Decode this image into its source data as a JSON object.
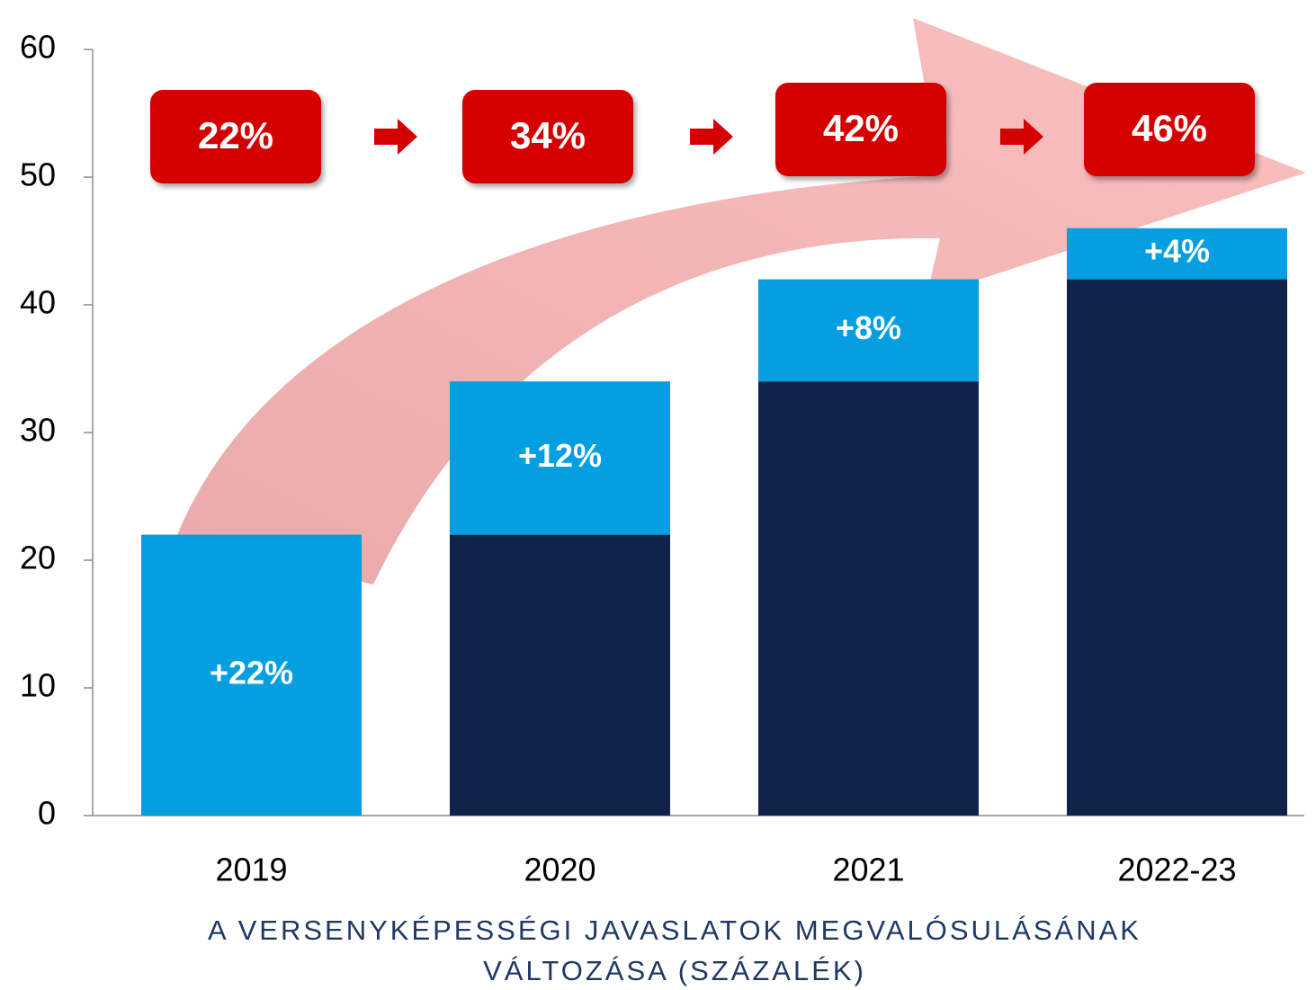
{
  "chart_data": {
    "type": "stacked_bar",
    "categories": [
      "2019",
      "2020",
      "2021",
      "2022-23"
    ],
    "series": [
      {
        "color": "#0f2249",
        "values": [
          0,
          22,
          34,
          42
        ]
      },
      {
        "color": "#039fe0",
        "values": [
          22,
          12,
          8,
          4
        ],
        "value_labels": [
          "+22%",
          "+12%",
          "+8%",
          "+4%"
        ]
      }
    ],
    "total_labels": [
      "22%",
      "34%",
      "42%",
      "46%"
    ],
    "x_label": [
      "A VERSENYKÉPESSÉGI JAVASLATOK MEGVALÓSULÁSÁNAK",
      "VÁLTOZÁSA (SZÁZALÉK)"
    ],
    "ylim": [
      0,
      60
    ],
    "yticks": [
      0,
      10,
      20,
      30,
      40,
      50,
      60
    ]
  }
}
